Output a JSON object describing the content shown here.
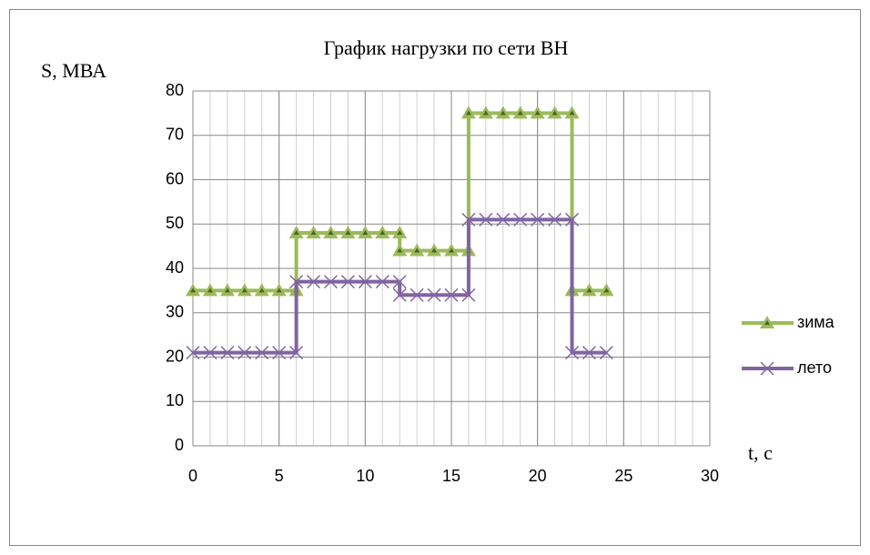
{
  "chart_data": {
    "type": "line",
    "title": "График нагрузки по сети ВН",
    "ylabel": "S, МВА",
    "xlabel": "t, с",
    "xlim": [
      0,
      30
    ],
    "xticks": [
      0,
      5,
      10,
      15,
      20,
      25,
      30
    ],
    "ylim": [
      0,
      80
    ],
    "yticks": [
      0,
      10,
      20,
      30,
      40,
      50,
      60,
      70,
      80
    ],
    "grid": true,
    "legend": "right",
    "series": [
      {
        "name": "зима",
        "color": "#9bbb59",
        "marker": "triangle",
        "x": [
          0,
          1,
          2,
          3,
          4,
          5,
          6,
          6,
          7,
          8,
          9,
          10,
          11,
          12,
          12,
          13,
          14,
          15,
          16,
          16,
          17,
          18,
          19,
          20,
          21,
          22,
          22,
          23,
          24
        ],
        "values": [
          35,
          35,
          35,
          35,
          35,
          35,
          35,
          48,
          48,
          48,
          48,
          48,
          48,
          48,
          44,
          44,
          44,
          44,
          44,
          75,
          75,
          75,
          75,
          75,
          75,
          75,
          35,
          35,
          35
        ]
      },
      {
        "name": "лето",
        "color": "#8064a2",
        "marker": "x",
        "x": [
          0,
          1,
          2,
          3,
          4,
          5,
          6,
          6,
          7,
          8,
          9,
          10,
          11,
          12,
          12,
          13,
          14,
          15,
          16,
          16,
          17,
          18,
          19,
          20,
          21,
          22,
          22,
          23,
          24
        ],
        "values": [
          21,
          21,
          21,
          21,
          21,
          21,
          21,
          37,
          37,
          37,
          37,
          37,
          37,
          37,
          34,
          34,
          34,
          34,
          34,
          51,
          51,
          51,
          51,
          51,
          51,
          51,
          21,
          21,
          21
        ]
      }
    ]
  }
}
